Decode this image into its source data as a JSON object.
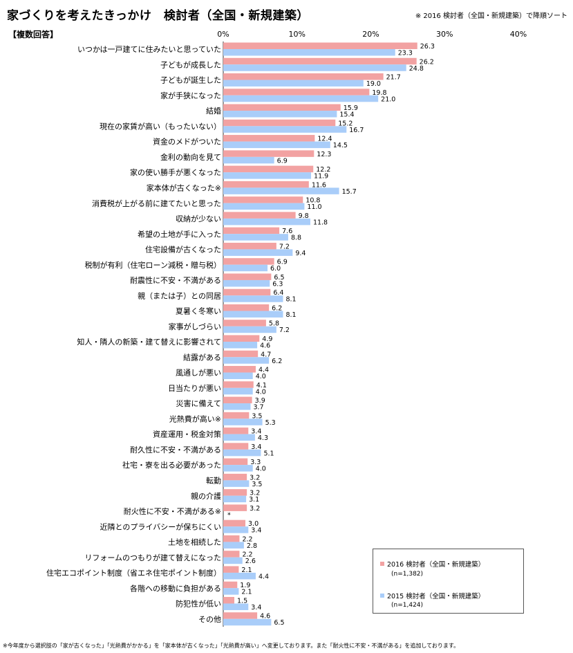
{
  "header": {
    "title": "家づくりを考えたきっかけ　検討者（全国・新規建築）",
    "sort_note": "※ 2016 検討者（全国・新規建築）で降順ソート",
    "multi_answer": "【複数回答】"
  },
  "footnote": "※今年度から選択肢の「家が古くなった」「光熱費がかかる」を「家本体が古くなった」「光熱費が高い」へ変更しております。また「耐火性に不安・不満がある」を追加しております。",
  "legend": {
    "s2016_label": "2016 検討者（全国・新規建築）",
    "s2016_n": "(n=1,382)",
    "s2015_label": "2015 検討者（全国・新規建築）",
    "s2015_n": "(n=1,424)"
  },
  "colors": {
    "s2016": "#f2a2a2",
    "s2015": "#a9cdf9"
  },
  "chart_data": {
    "type": "bar",
    "orientation": "horizontal",
    "xlim": [
      0,
      40
    ],
    "ticks": [
      "0%",
      "10%",
      "20%",
      "30%",
      "40%"
    ],
    "categories": [
      "いつかは一戸建てに住みたいと思っていた",
      "子どもが成長した",
      "子どもが誕生した",
      "家が手狭になった",
      "結婚",
      "現在の家賃が高い（もったいない）",
      "資金のメドがついた",
      "金利の動向を見て",
      "家の使い勝手が悪くなった",
      "家本体が古くなった※",
      "消費税が上がる前に建てたいと思った",
      "収納が少ない",
      "希望の土地が手に入った",
      "住宅設備が古くなった",
      "税制が有利（住宅ローン減税・贈与税）",
      "耐震性に不安・不満がある",
      "親（または子）との同居",
      "夏暑く冬寒い",
      "家事がしづらい",
      "知人・隣人の新築・建て替えに影響されて",
      "結露がある",
      "風通しが悪い",
      "日当たりが悪い",
      "災害に備えて",
      "光熱費が高い※",
      "資産運用・税金対策",
      "耐久性に不安・不満がある",
      "社宅・寮を出る必要があった",
      "転勤",
      "親の介護",
      "耐火性に不安・不満がある※",
      "近隣とのプライバシーが保ちにくい",
      "土地を相続した",
      "リフォームのつもりが建て替えになった",
      "住宅エコポイント制度（省エネ住宅ポイント制度）",
      "各階への移動に負担がある",
      "防犯性が低い",
      "その他"
    ],
    "series": [
      {
        "name": "2016 検討者（全国・新規建築）",
        "values": [
          26.3,
          26.2,
          21.7,
          19.8,
          15.9,
          15.2,
          12.4,
          12.3,
          12.2,
          11.6,
          10.8,
          9.8,
          7.6,
          7.2,
          6.9,
          6.5,
          6.4,
          6.2,
          5.8,
          4.9,
          4.7,
          4.4,
          4.1,
          3.9,
          3.5,
          3.4,
          3.4,
          3.3,
          3.2,
          3.2,
          3.2,
          3.0,
          2.2,
          2.2,
          2.1,
          1.9,
          1.5,
          4.6
        ],
        "labels": [
          "26.3",
          "26.2",
          "21.7",
          "19.8",
          "15.9",
          "15.2",
          "12.4",
          "12.3",
          "12.2",
          "11.6",
          "10.8",
          "9.8",
          "7.6",
          "7.2",
          "6.9",
          "6.5",
          "6.4",
          "6.2",
          "5.8",
          "4.9",
          "4.7",
          "4.4",
          "4.1",
          "3.9",
          "3.5",
          "3.4",
          "3.4",
          "3.3",
          "3.2",
          "3.2",
          "3.2",
          "3.0",
          "2.2",
          "2.2",
          "2.1",
          "1.9",
          "1.5",
          "4.6"
        ]
      },
      {
        "name": "2015 検討者（全国・新規建築）",
        "values": [
          23.3,
          24.8,
          19.0,
          21.0,
          15.4,
          16.7,
          14.5,
          6.9,
          11.9,
          15.7,
          11.0,
          11.8,
          8.8,
          9.4,
          6.0,
          6.3,
          8.1,
          8.1,
          7.2,
          4.6,
          6.2,
          4.0,
          4.0,
          3.7,
          5.3,
          4.3,
          5.1,
          4.0,
          3.5,
          3.1,
          null,
          3.4,
          2.8,
          2.6,
          4.4,
          2.1,
          3.4,
          6.5
        ],
        "labels": [
          "23.3",
          "24.8",
          "19.0",
          "21.0",
          "15.4",
          "16.7",
          "14.5",
          "6.9",
          "11.9",
          "15.7",
          "11.0",
          "11.8",
          "8.8",
          "9.4",
          "6.0",
          "6.3",
          "8.1",
          "8.1",
          "7.2",
          "4.6",
          "6.2",
          "4.0",
          "4.0",
          "3.7",
          "5.3",
          "4.3",
          "5.1",
          "4.0",
          "3.5",
          "3.1",
          "*",
          "3.4",
          "2.8",
          "2.6",
          "4.4",
          "2.1",
          "3.4",
          "6.5"
        ]
      }
    ],
    "grid": false,
    "legend_position": "bottom-right"
  }
}
